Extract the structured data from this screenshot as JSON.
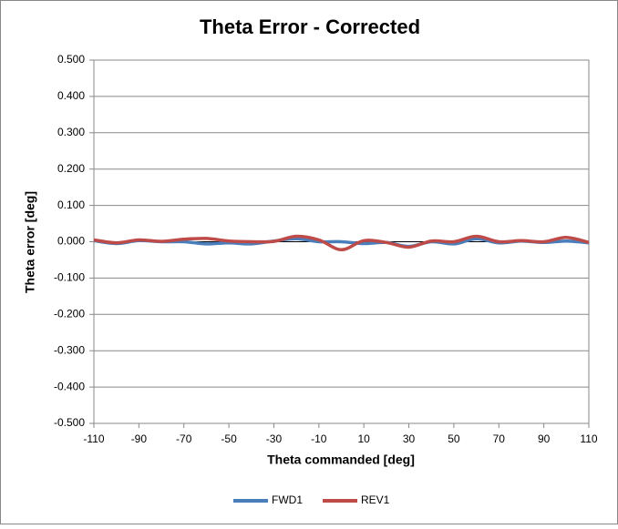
{
  "chart_data": {
    "type": "line",
    "title": "Theta Error - Corrected",
    "xlabel": "Theta commanded [deg]",
    "ylabel": "Theta error  [deg]",
    "x": [
      -110,
      -100,
      -90,
      -80,
      -70,
      -60,
      -50,
      -40,
      -30,
      -20,
      -10,
      0,
      10,
      20,
      30,
      40,
      50,
      60,
      70,
      80,
      90,
      100,
      110
    ],
    "series": [
      {
        "name": "FWD1",
        "color": "#4a7ebb",
        "values": [
          0.003,
          -0.005,
          0.003,
          0.0,
          0.0,
          -0.006,
          -0.003,
          -0.006,
          0.002,
          0.008,
          0.0,
          0.0,
          -0.005,
          -0.002,
          -0.013,
          0.0,
          -0.006,
          0.008,
          -0.003,
          0.002,
          -0.002,
          0.002,
          -0.003
        ]
      },
      {
        "name": "REV1",
        "color": "#be4b48",
        "values": [
          0.005,
          -0.003,
          0.005,
          0.001,
          0.007,
          0.009,
          0.002,
          0.0,
          0.001,
          0.015,
          0.005,
          -0.022,
          0.003,
          -0.002,
          -0.015,
          0.002,
          0.0,
          0.015,
          0.0,
          0.003,
          0.0,
          0.012,
          -0.002
        ]
      }
    ],
    "xlim": [
      -110,
      110
    ],
    "xticks": [
      -110,
      -90,
      -70,
      -50,
      -30,
      -10,
      10,
      30,
      50,
      70,
      90,
      110
    ],
    "ylim": [
      -0.5,
      0.5
    ],
    "yticks": [
      {
        "value": -0.5,
        "label": "-0.500"
      },
      {
        "value": -0.4,
        "label": "-0.400"
      },
      {
        "value": -0.3,
        "label": "-0.300"
      },
      {
        "value": -0.2,
        "label": "-0.200"
      },
      {
        "value": -0.1,
        "label": "-0.100"
      },
      {
        "value": 0,
        "label": "0.000"
      },
      {
        "value": 0.1,
        "label": "0.100"
      },
      {
        "value": 0.2,
        "label": "0.200"
      },
      {
        "value": 0.3,
        "label": "0.300"
      },
      {
        "value": 0.4,
        "label": "0.400"
      },
      {
        "value": 0.5,
        "label": "0.500"
      }
    ],
    "grid": true,
    "legend": "bottom"
  }
}
